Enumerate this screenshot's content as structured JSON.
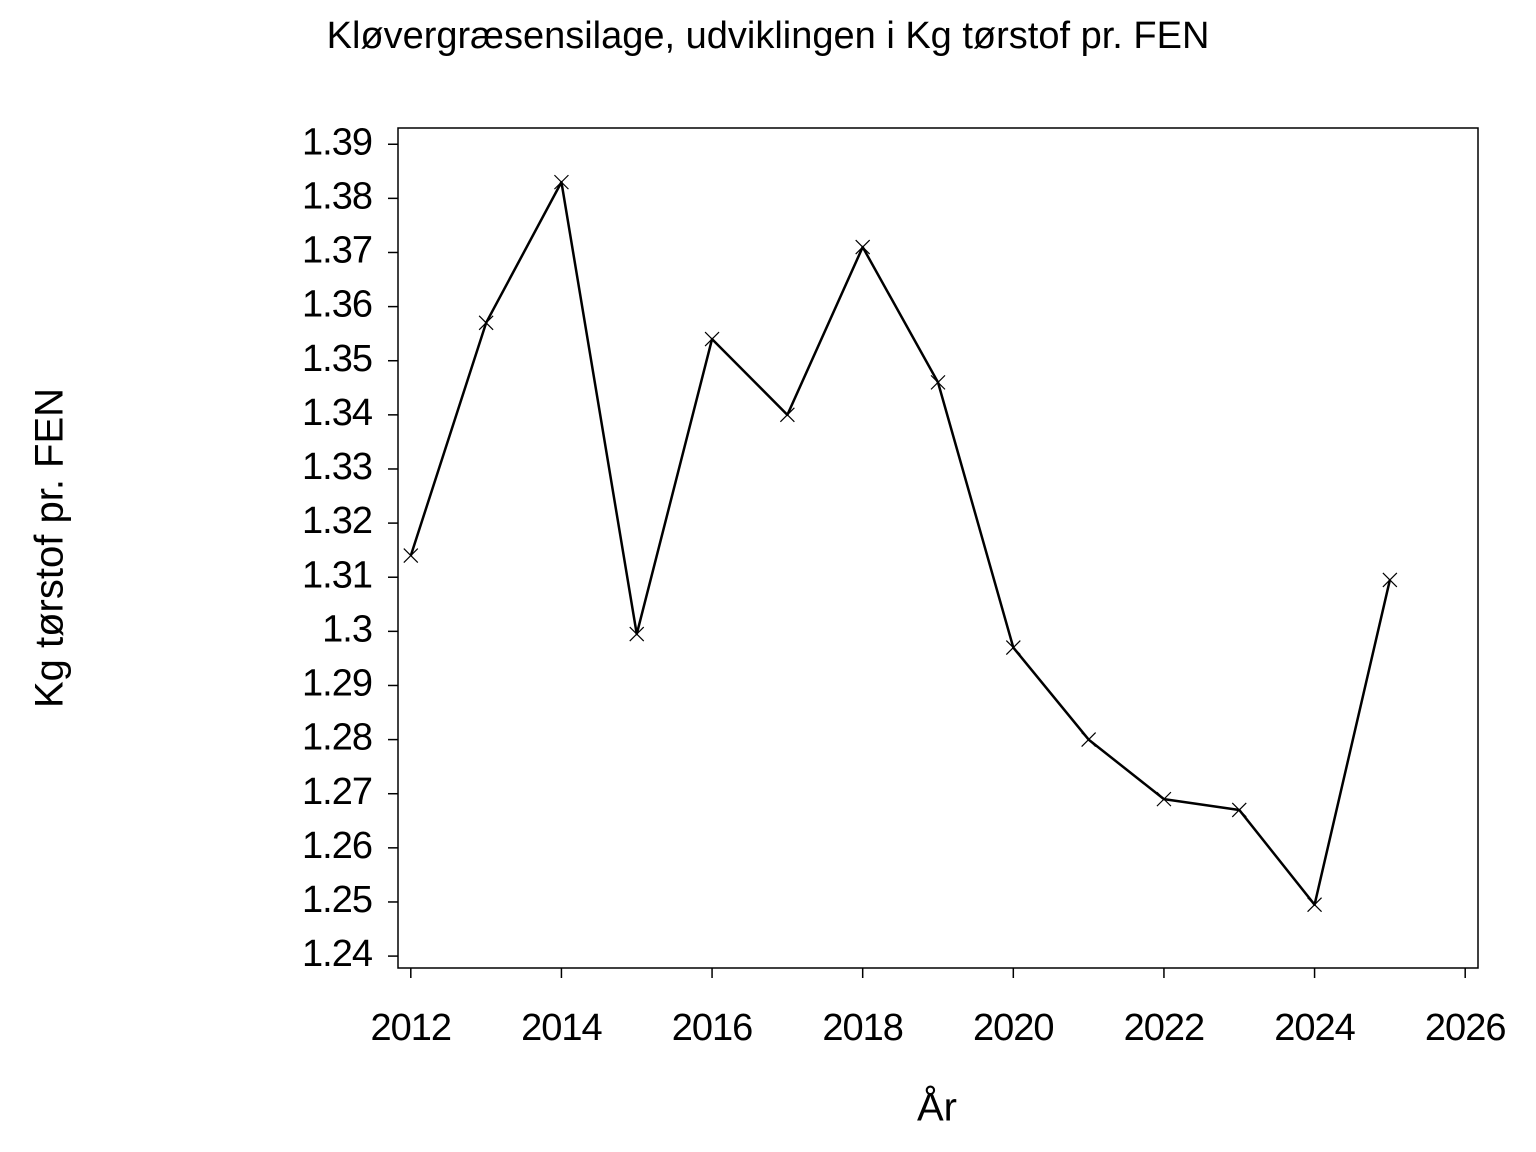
{
  "chart_data": {
    "type": "line",
    "title": "Kløvergræsensilage,  udviklingen  i  Kg  tørstof  pr.  FEN",
    "x_label": "År",
    "y_label": "Kg  tørstof  pr.  FEN",
    "x": [
      2012,
      2013,
      2014,
      2015,
      2016,
      2017,
      2018,
      2019,
      2020,
      2021,
      2022,
      2023,
      2024,
      2025
    ],
    "values": [
      1.314,
      1.357,
      1.383,
      1.2995,
      1.354,
      1.34,
      1.371,
      1.346,
      1.297,
      1.28,
      1.269,
      1.267,
      1.2495,
      1.3095
    ],
    "color": "#000000",
    "xlim": [
      2011.83,
      2026.17
    ],
    "ylim": [
      1.2378,
      1.393
    ],
    "xticks": [
      2012,
      2014,
      2016,
      2018,
      2020,
      2022,
      2024,
      2026
    ],
    "yticks": [
      1.24,
      1.25,
      1.26,
      1.27,
      1.28,
      1.29,
      1.3,
      1.31,
      1.32,
      1.33,
      1.34,
      1.35,
      1.36,
      1.37,
      1.38,
      1.39
    ],
    "grid": false
  }
}
